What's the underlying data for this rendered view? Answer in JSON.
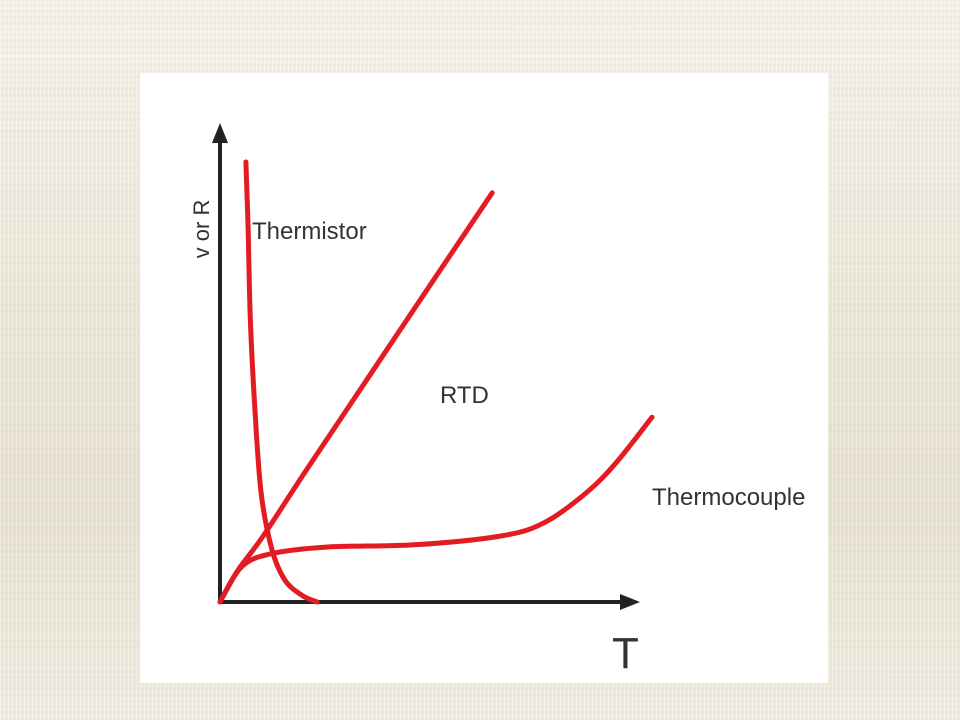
{
  "chart_data": {
    "type": "line",
    "title": "",
    "xlabel": "T",
    "ylabel": "v or R",
    "xlim": [
      0,
      100
    ],
    "ylim": [
      0,
      100
    ],
    "grid": false,
    "legend": "none",
    "line_color": "#e31b23",
    "axis_color": "#222222",
    "series": [
      {
        "name": "Thermistor",
        "x": [
          6,
          6.5,
          7,
          8,
          9.5,
          12,
          15,
          19,
          22.5
        ],
        "y": [
          100,
          85,
          65,
          45,
          25,
          12,
          5,
          1.5,
          0
        ]
      },
      {
        "name": "RTD",
        "x": [
          0,
          4,
          10,
          20,
          35,
          50,
          63
        ],
        "y": [
          0,
          7,
          15,
          30,
          52,
          74,
          93
        ]
      },
      {
        "name": "Thermocouple",
        "x": [
          0,
          5,
          12,
          25,
          45,
          65,
          75,
          85,
          92,
          100
        ],
        "y": [
          0,
          8,
          11,
          12.5,
          13,
          15,
          18,
          25,
          32,
          42
        ]
      }
    ]
  }
}
